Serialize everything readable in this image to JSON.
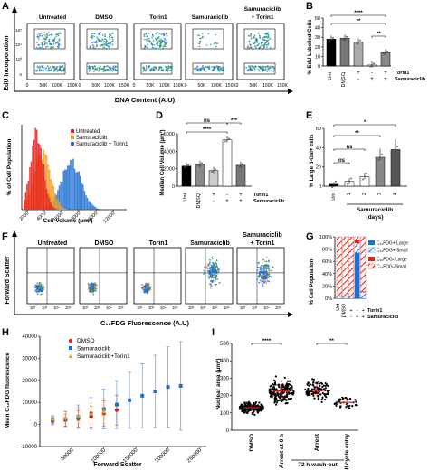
{
  "panels": {
    "A": {
      "letter": "A",
      "ylabel": "EdU Incorporation",
      "xlabel": "DNA Content (A.U)",
      "titles": [
        "Untreated",
        "DMSO",
        "Torin1",
        "Samuraciclib",
        "Samuraciclib",
        "+ Torin1"
      ],
      "xticks": [
        "0",
        "50K",
        "100K",
        "150K"
      ],
      "yticks": [
        "10⁵",
        "10⁴",
        "10³",
        "0"
      ]
    },
    "B": {
      "letter": "B",
      "ylabel": "% EdU Labelled Cells",
      "yticks": [
        "0",
        "10",
        "20",
        "30",
        "40",
        "50"
      ],
      "cats": [
        "Unt",
        "DMSO",
        "-",
        "+",
        "+"
      ],
      "torin_row": [
        "-",
        "+",
        "-",
        "+"
      ],
      "sam_row": [
        "-",
        "-",
        "+",
        "+"
      ],
      "row_labels": [
        "Torin1",
        "Samuraciclib"
      ],
      "sig": [
        "****",
        "**",
        "**"
      ]
    },
    "C": {
      "letter": "C",
      "ylabel": "% of Cell Population",
      "xlabel": "Cell Volume (μm³)",
      "xticks": [
        "2000",
        "4000",
        "6000",
        "8000",
        "10000",
        "12000"
      ],
      "legend": [
        "Untreated",
        "Samuraciclib",
        "Samuraciclib + Torin1"
      ]
    },
    "D": {
      "letter": "D",
      "ylabel": "Median Cell Volume (μm³)",
      "yticks": [
        "0",
        "2000",
        "4000",
        "6000"
      ],
      "cats": [
        "Unt",
        "DMSO"
      ],
      "torin_row": [
        "-",
        "+",
        "-",
        "+"
      ],
      "sam_row": [
        "-",
        "-",
        "+",
        "+"
      ],
      "row_labels": [
        "Torin1",
        "Samuraciclib"
      ],
      "sig": [
        "ns",
        "****",
        "***"
      ]
    },
    "E": {
      "letter": "E",
      "ylabel": "% Large β-Gal+ cells",
      "yticks": [
        "0",
        "20",
        "40",
        "60"
      ],
      "cats": [
        "Unt",
        "1",
        "2",
        "3",
        "4"
      ],
      "group_label": "Samuraciclib",
      "group_sub": "(days)",
      "sig": [
        "*",
        "**",
        "ns",
        "ns",
        "ns"
      ]
    },
    "F": {
      "letter": "F",
      "ylabel": "Forward Scatter",
      "xlabel": "C₁₂FDG Fluorescence (A.U)",
      "titles": [
        "Untreated",
        "DMSO",
        "Torin1",
        "Samuraciclib",
        "Samuraciclib",
        "+ Torin1"
      ]
    },
    "G": {
      "letter": "G",
      "ylabel": "% Cell Population",
      "yticks": [
        "0%",
        "20%",
        "40%",
        "60%",
        "80%",
        "100%"
      ],
      "cats": [
        "Unt",
        "DMSO",
        "-",
        "+",
        "+"
      ],
      "torin_row": [
        "-",
        "+",
        "-",
        "+"
      ],
      "sam_row": [
        "-",
        "-",
        "+",
        "+"
      ],
      "row_labels": [
        "Torin1",
        "Samuraciclib"
      ],
      "legend": [
        "C₁₂FDG+/Large",
        "C₁₂FDG+/Small",
        "C₁₂FDG-/Large",
        "C₁₂FDG-/Small"
      ]
    },
    "H": {
      "letter": "H",
      "ylabel": "Mean C₁₂FDG fluorescence",
      "xlabel": "Forward Scatter",
      "yticks": [
        "-10000",
        "0",
        "10000",
        "20000",
        "30000",
        "40000"
      ],
      "xticks": [
        "50000",
        "100000",
        "150000",
        "200000",
        "250000"
      ],
      "legend": [
        "DMSO",
        "Samuraciclib",
        "Samuraciclib+Torin1"
      ]
    },
    "I": {
      "letter": "I",
      "ylabel": "Nuclear area (μm²)",
      "yticks": [
        "0",
        "100",
        "200",
        "300",
        "400",
        "500"
      ],
      "cats": [
        "DMSO",
        "Arrest at 0 h",
        "Arrest",
        "Cell cycle entry"
      ],
      "group_label": "72 h wash-out",
      "sig": [
        "****",
        "**"
      ]
    }
  },
  "colors": {
    "blue": "#1f6fd1",
    "red": "#e8201b",
    "orange": "#f39c1e",
    "green": "#2ca05a",
    "gray": "#888888",
    "black": "#000000"
  },
  "chart_data": [
    {
      "type": "bar",
      "panel": "B",
      "categories": [
        "Unt",
        "DMSO",
        "Torin1",
        "Samuraciclib",
        "Samuraciclib + Torin1"
      ],
      "values": [
        28,
        29,
        25,
        1,
        14
      ],
      "ylim": [
        0,
        50
      ]
    },
    {
      "type": "bar",
      "panel": "D",
      "categories": [
        "Unt",
        "DMSO",
        "Torin1",
        "Samuraciclib",
        "Samuraciclib + Torin1"
      ],
      "values": [
        2300,
        2500,
        1800,
        5300,
        2400
      ],
      "ylim": [
        0,
        6000
      ]
    },
    {
      "type": "bar",
      "panel": "E",
      "categories": [
        "Unt",
        "1",
        "2",
        "3",
        "4"
      ],
      "values": [
        2,
        5,
        10,
        30,
        38
      ],
      "ylim": [
        0,
        60
      ]
    },
    {
      "type": "bar",
      "panel": "G",
      "categories": [
        "Unt",
        "DMSO",
        "Torin1",
        "Samuraciclib",
        "Samuraciclib + Torin1"
      ],
      "series": [
        {
          "name": "C₁₂FDG+/Large",
          "values": [
            0,
            0,
            0,
            74,
            0
          ]
        },
        {
          "name": "C₁₂FDG+/Small",
          "values": [
            3,
            3,
            3,
            16,
            10
          ]
        },
        {
          "name": "C₁₂FDG-/Large",
          "values": [
            0,
            0,
            0,
            5,
            1
          ]
        },
        {
          "name": "C₁₂FDG-/Small",
          "values": [
            97,
            97,
            97,
            5,
            89
          ]
        }
      ],
      "ylim": [
        0,
        100
      ]
    },
    {
      "type": "scatter",
      "panel": "H",
      "xlim": [
        0,
        260000
      ],
      "ylim": [
        -10000,
        40000
      ],
      "series": [
        {
          "name": "DMSO",
          "x": [
            20000,
            40000,
            60000,
            80000,
            100000,
            120000
          ],
          "y": [
            1500,
            2000,
            2500,
            3500,
            5000,
            6500
          ]
        },
        {
          "name": "Samuraciclib",
          "x": [
            20000,
            40000,
            60000,
            80000,
            100000,
            120000,
            140000,
            160000,
            180000,
            200000,
            220000
          ],
          "y": [
            2000,
            2500,
            3500,
            5000,
            7000,
            9000,
            11000,
            13000,
            15000,
            17000,
            17500
          ]
        },
        {
          "name": "Samuraciclib+Torin1",
          "x": [
            20000,
            40000,
            60000,
            80000,
            100000
          ],
          "y": [
            2500,
            3000,
            4000,
            5000,
            6000
          ]
        }
      ]
    },
    {
      "type": "scatter",
      "panel": "I",
      "categories": [
        "DMSO",
        "Arrest at 0 h",
        "Arrest",
        "Cell cycle entry"
      ],
      "medians": [
        130,
        225,
        230,
        160
      ],
      "ylim": [
        0,
        500
      ]
    }
  ]
}
